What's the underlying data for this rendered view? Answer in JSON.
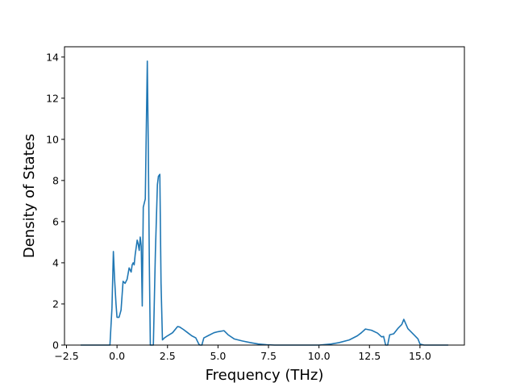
{
  "chart_data": {
    "type": "line",
    "xlabel": "Frequency (THz)",
    "ylabel": "Density of States",
    "xlim": [
      -2.6,
      17.2
    ],
    "ylim": [
      0,
      14.5
    ],
    "xticks": [
      -2.5,
      0.0,
      2.5,
      5.0,
      7.5,
      10.0,
      12.5,
      15.0
    ],
    "xtick_labels": [
      "−2.5",
      "0.0",
      "2.5",
      "5.0",
      "7.5",
      "10.0",
      "12.5",
      "15.0"
    ],
    "yticks": [
      0,
      2,
      4,
      6,
      8,
      10,
      12,
      14
    ],
    "ytick_labels": [
      "0",
      "2",
      "4",
      "6",
      "8",
      "10",
      "12",
      "14"
    ],
    "grid": false,
    "line_color": "#1f77b4",
    "series": [
      {
        "x": [
          -1.8,
          -0.35,
          -0.25,
          -0.18,
          -0.12,
          -0.05,
          0.0,
          0.1,
          0.2,
          0.3,
          0.4,
          0.5,
          0.6,
          0.7,
          0.75,
          0.8,
          0.85,
          0.9,
          1.0,
          1.05,
          1.1,
          1.15,
          1.2,
          1.25,
          1.3,
          1.4,
          1.45,
          1.5,
          1.55,
          1.6,
          1.65,
          1.75,
          1.8,
          1.9,
          2.0,
          2.05,
          2.12,
          2.18,
          2.25,
          2.35,
          2.5,
          2.75,
          3.0,
          3.1,
          3.3,
          3.5,
          3.7,
          3.9,
          4.05,
          4.1,
          4.2,
          4.3,
          4.5,
          4.8,
          5.0,
          5.3,
          5.5,
          5.8,
          6.2,
          6.6,
          7.0,
          7.4,
          7.8,
          8.2,
          9.0,
          10.0,
          10.6,
          11.0,
          11.5,
          11.9,
          12.1,
          12.3,
          12.6,
          12.9,
          13.1,
          13.2,
          13.3,
          13.4,
          13.5,
          13.7,
          13.9,
          14.1,
          14.2,
          14.4,
          14.7,
          14.9,
          15.0,
          15.2,
          15.8,
          16.4
        ],
        "y": [
          0,
          0,
          1.8,
          4.55,
          3.2,
          2.0,
          1.35,
          1.35,
          1.7,
          3.1,
          3.0,
          3.2,
          3.75,
          3.55,
          3.9,
          4.0,
          3.9,
          4.4,
          5.1,
          4.9,
          4.6,
          5.25,
          4.8,
          1.9,
          6.7,
          7.1,
          10.5,
          13.8,
          9.5,
          4.0,
          0,
          0,
          0,
          4.5,
          7.8,
          8.2,
          8.3,
          3.0,
          0.25,
          0.35,
          0.45,
          0.6,
          0.9,
          0.88,
          0.75,
          0.6,
          0.45,
          0.35,
          0.05,
          0,
          0,
          0.35,
          0.45,
          0.6,
          0.65,
          0.7,
          0.5,
          0.3,
          0.2,
          0.12,
          0.05,
          0.02,
          0,
          0,
          0,
          0,
          0.05,
          0.12,
          0.25,
          0.45,
          0.6,
          0.78,
          0.72,
          0.58,
          0.4,
          0.42,
          0,
          0,
          0.5,
          0.55,
          0.8,
          1.0,
          1.25,
          0.8,
          0.5,
          0.3,
          0.05,
          0,
          0,
          0
        ]
      }
    ]
  }
}
